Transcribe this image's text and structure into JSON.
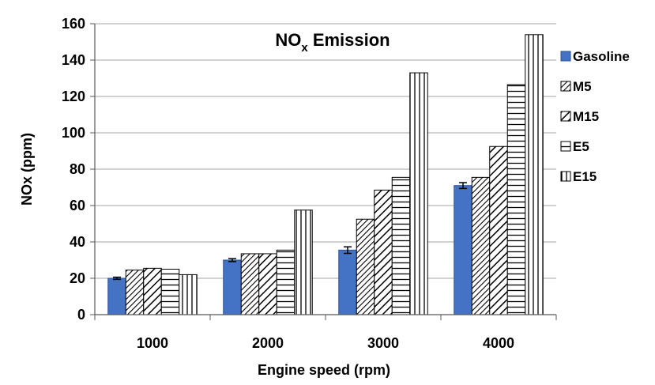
{
  "chart_data": {
    "type": "bar",
    "title": "NO",
    "title_subscript": "x",
    "title_rest": " Emission",
    "xlabel": "Engine speed (rpm)",
    "ylabel": "NOx  (ppm)",
    "ylim": [
      0,
      160
    ],
    "yticks": [
      "0",
      "20",
      "40",
      "60",
      "80",
      "100",
      "120",
      "140",
      "160"
    ],
    "categories": [
      "1000",
      "2000",
      "3000",
      "4000"
    ],
    "grid": true,
    "legend_position": "right",
    "series": [
      {
        "name": "Gasoline",
        "values": [
          20,
          30,
          35.5,
          71
        ],
        "errors": [
          0.6,
          0.8,
          1.8,
          1.6
        ],
        "fill": "solid",
        "color": "#4472c4",
        "stroke": "#2f528f"
      },
      {
        "name": "M5",
        "values": [
          24.5,
          33.5,
          52.5,
          75.5
        ],
        "fill": "diag-dense",
        "color": "#000000"
      },
      {
        "name": "M15",
        "values": [
          25.5,
          33.5,
          68.5,
          92.5
        ],
        "fill": "diag-wide",
        "color": "#000000"
      },
      {
        "name": "E5",
        "values": [
          25,
          35.5,
          75.5,
          126.5
        ],
        "fill": "horizontal",
        "color": "#000000"
      },
      {
        "name": "E15",
        "values": [
          22,
          57.5,
          133,
          154
        ],
        "fill": "vertical",
        "color": "#000000"
      }
    ]
  }
}
